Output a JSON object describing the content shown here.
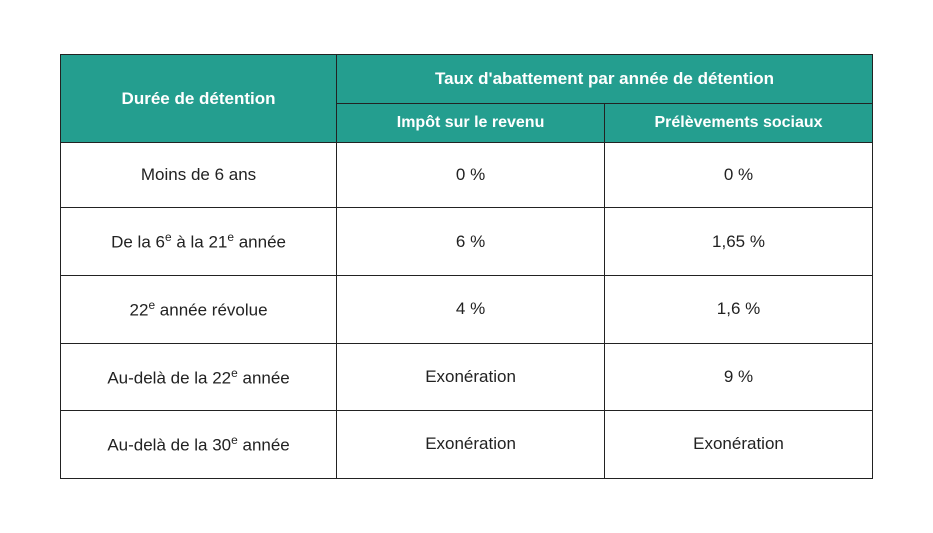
{
  "table": {
    "header_bg": "#249e8f",
    "header_fg": "#ffffff",
    "border_color": "#222222",
    "cell_bg": "#ffffff",
    "cell_fg": "#222222",
    "columns": {
      "c0": "Durée de détention",
      "group": "Taux d'abattement par année de détention",
      "c1": "Impôt sur le revenu",
      "c2": "Prélèvements sociaux"
    },
    "rows": [
      {
        "dur_html": "Moins de 6 ans",
        "ir": "0 %",
        "ps": "0 %"
      },
      {
        "dur_html": "De la 6<span class=\"sup\">e</span> à la 21<span class=\"sup\">e</span> année",
        "ir": "6 %",
        "ps": "1,65 %"
      },
      {
        "dur_html": "22<span class=\"sup\">e</span> année révolue",
        "ir": "4 %",
        "ps": "1,6 %"
      },
      {
        "dur_html": "Au-delà de la 22<span class=\"sup\">e</span> année",
        "ir": "Exonération",
        "ps": "9 %"
      },
      {
        "dur_html": "Au-delà de la 30<span class=\"sup\">e</span> année",
        "ir": "Exonération",
        "ps": "Exonération"
      }
    ],
    "col_widths": [
      "34%",
      "33%",
      "33%"
    ]
  }
}
